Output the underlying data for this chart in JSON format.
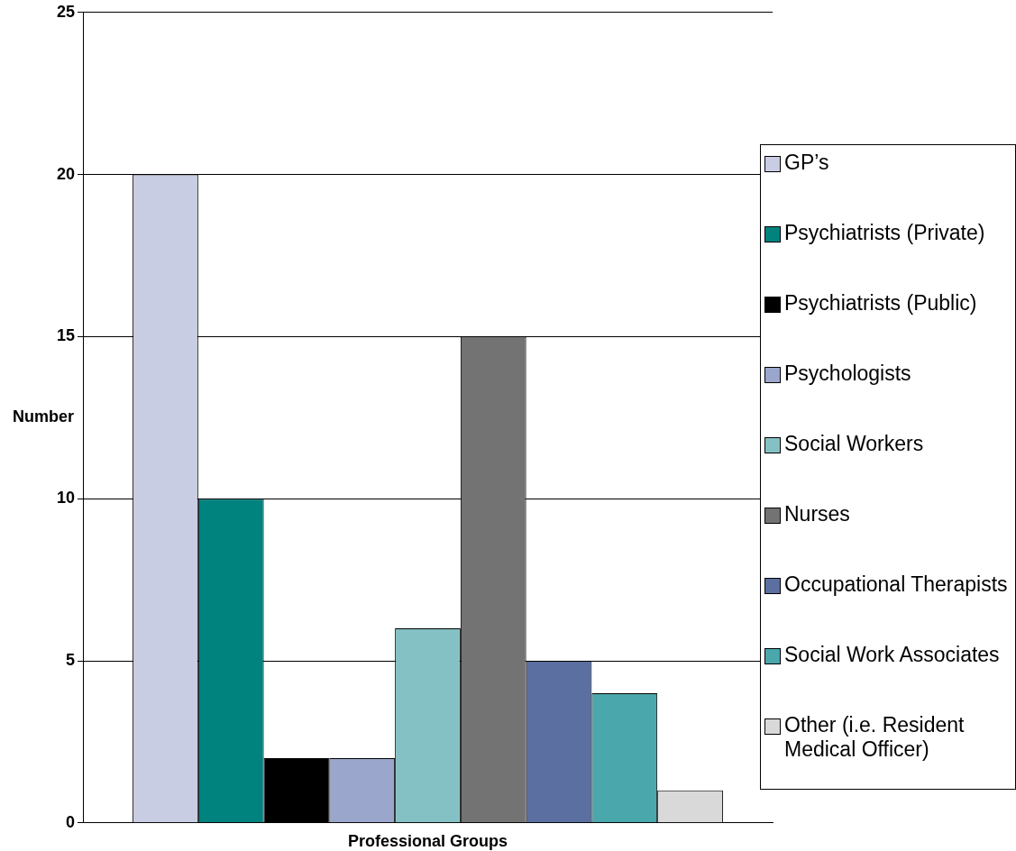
{
  "chart_data": {
    "type": "bar",
    "xlabel": "Professional Groups",
    "ylabel": "Number",
    "categories": [
      null
    ],
    "series": [
      {
        "name": "GP’s",
        "color": "#c8cde3",
        "values": [
          20
        ]
      },
      {
        "name": "Psychiatrists (Private)",
        "color": "#00827f",
        "values": [
          10
        ]
      },
      {
        "name": "Psychiatrists (Public)",
        "color": "#000000",
        "values": [
          2
        ]
      },
      {
        "name": "Psychologists",
        "color": "#9aa6cc",
        "values": [
          2
        ]
      },
      {
        "name": "Social Workers",
        "color": "#84c1c4",
        "values": [
          6
        ]
      },
      {
        "name": "Nurses",
        "color": "#737373",
        "values": [
          15
        ]
      },
      {
        "name": "Occupational Therapists",
        "color": "#5b6fa0",
        "values": [
          5
        ]
      },
      {
        "name": "Social Work Associates",
        "color": "#4aa8ac",
        "values": [
          4
        ]
      },
      {
        "name": "Other (i.e. Resident Medical Officer)",
        "color": "#d9d9d9",
        "values": [
          1
        ]
      }
    ],
    "ylim": [
      0,
      25
    ],
    "yticks": [
      0,
      5,
      10,
      15,
      20,
      25
    ],
    "grid": "y",
    "legend": "right"
  }
}
